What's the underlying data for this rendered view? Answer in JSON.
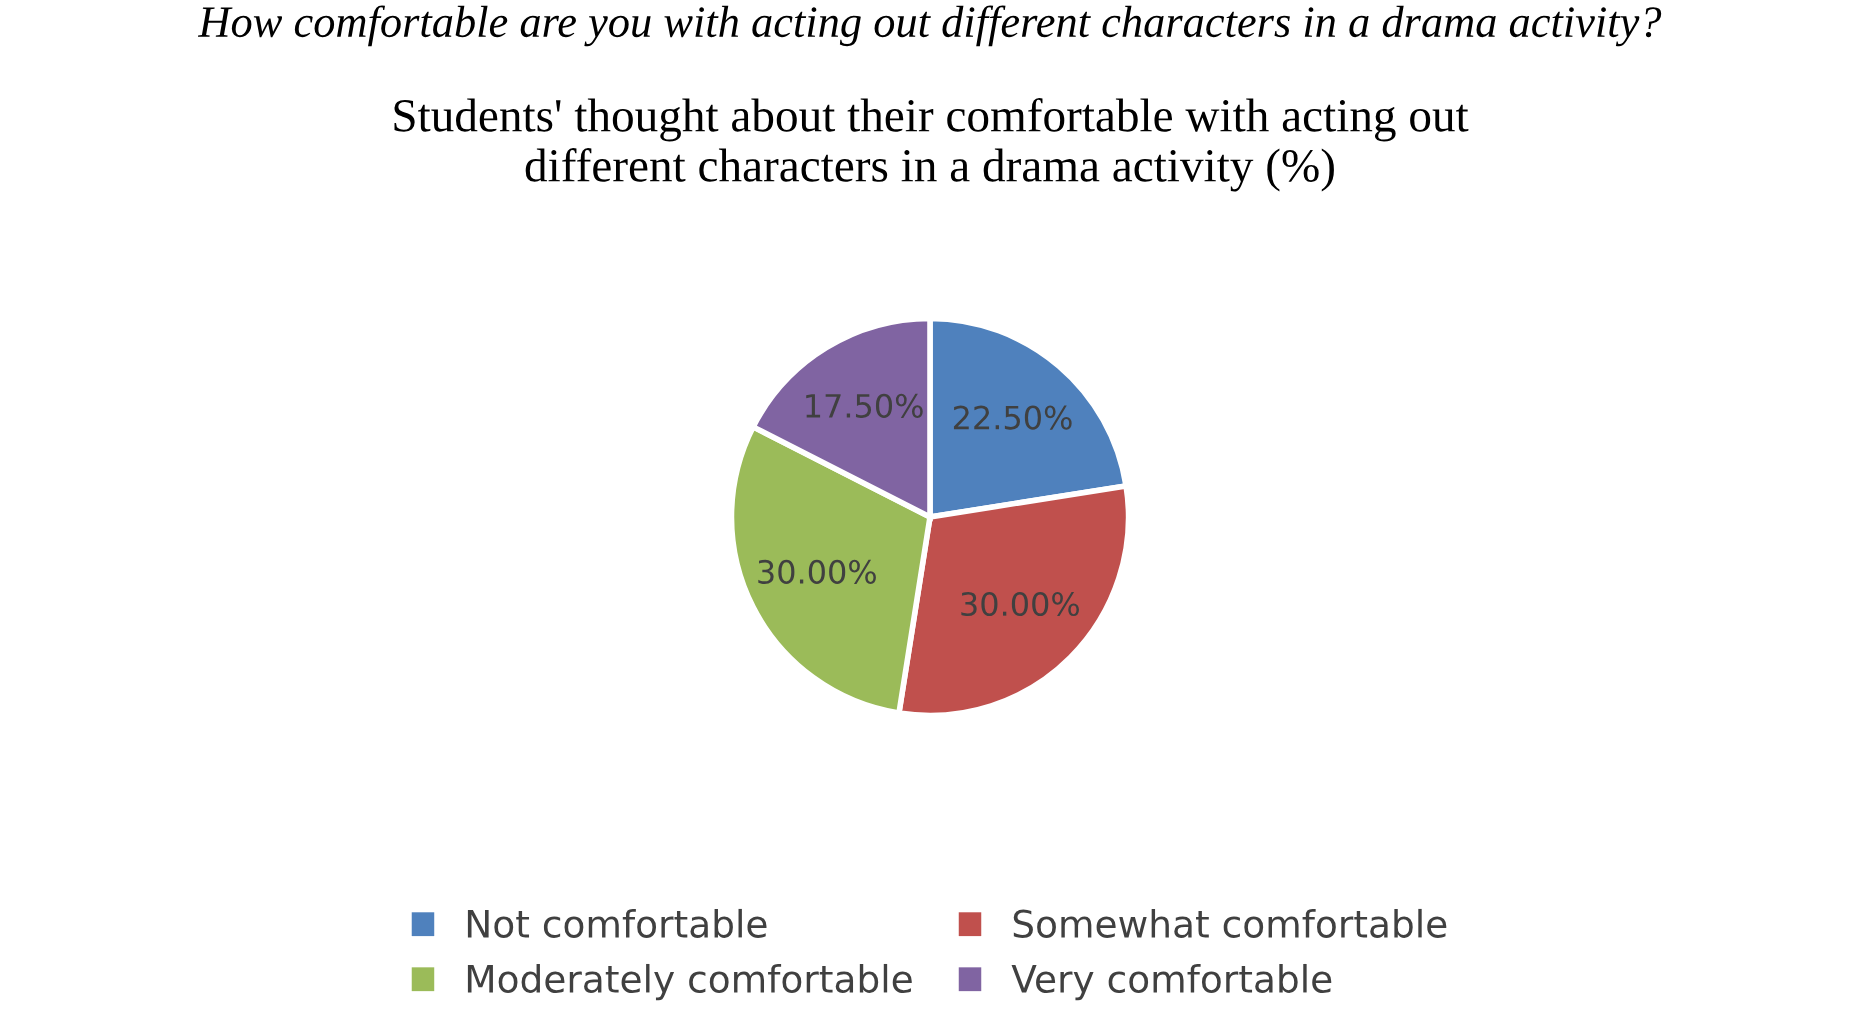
{
  "chart_data": {
    "type": "pie",
    "title": "Students' thought about their comfortable with acting out\ndifferent characters in a drama activity (%)",
    "annotations": [
      "How comfortable are you with acting out different characters in a drama activity?"
    ],
    "categories": [
      "Not comfortable",
      "Somewhat comfortable",
      "Moderately comfortable",
      "Very comfortable"
    ],
    "values": [
      22.5,
      30,
      30,
      17.5
    ],
    "value_labels": [
      "22.50%",
      "30.00%",
      "30.00%",
      "17.50%"
    ],
    "colors": [
      "#4f81bd",
      "#c0504d",
      "#9bbb59",
      "#8064a2"
    ],
    "legend": "bottom"
  }
}
